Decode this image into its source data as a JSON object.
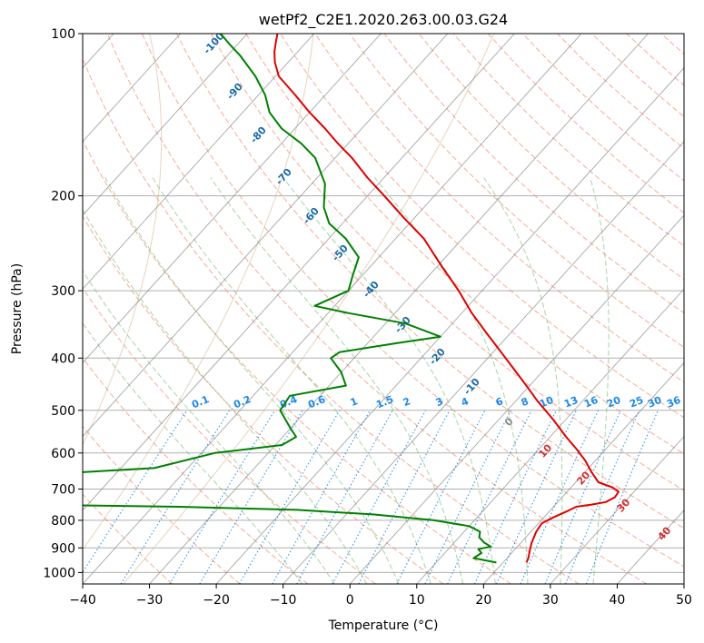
{
  "chart_data": {
    "type": "line",
    "title": "wetPf2_C2E1.2020.263.00.03.G24",
    "xlabel": "Temperature (°C)",
    "ylabel": "Pressure (hPa)",
    "xlim": [
      -40,
      50
    ],
    "ylim": [
      1050,
      100
    ],
    "y_scale": "log",
    "x_ticks": [
      -40,
      -30,
      -20,
      -10,
      0,
      10,
      20,
      30,
      40,
      50
    ],
    "x_tick_labels": [
      "−40",
      "−30",
      "−20",
      "−10",
      "0",
      "10",
      "20",
      "30",
      "40",
      "50"
    ],
    "y_ticks": [
      100,
      200,
      300,
      400,
      500,
      600,
      700,
      800,
      900,
      1000
    ],
    "y_tick_labels": [
      "100",
      "200",
      "300",
      "400",
      "500",
      "600",
      "700",
      "800",
      "900",
      "1000"
    ],
    "grid": true,
    "skew": true,
    "colors": {
      "temperature": "#e00000",
      "dewpoint": "#008000",
      "isotherm": "#888888",
      "dry_adiabat": "#f08060",
      "moist_adiabat": "#60b060",
      "mixing_ratio": "#1e88e5",
      "isotherm_label": "#1a6aa8",
      "warm_label": "#d03030",
      "zero_label": "#888888",
      "ref_curve": "#c8a070"
    },
    "series": [
      {
        "name": "",
        "role": "temperature",
        "pressure": [
          958,
          940,
          915,
          880,
          840,
          810,
          790,
          770,
          755,
          748,
          740,
          725,
          708,
          695,
          680,
          650,
          620,
          590,
          560,
          520,
          480,
          450,
          420,
          390,
          360,
          330,
          300,
          270,
          240,
          220,
          200,
          185,
          170,
          160,
          150,
          140,
          130,
          120,
          113,
          108,
          104,
          100
        ],
        "temp": [
          23.5,
          23.2,
          22.5,
          21.6,
          20.8,
          20.5,
          21.4,
          22.6,
          23.4,
          25.4,
          27.2,
          27.9,
          27.7,
          26.2,
          23.4,
          20.9,
          18.5,
          15.6,
          12.4,
          8.1,
          3.2,
          -0.5,
          -4.5,
          -8.8,
          -13.5,
          -18.5,
          -23.5,
          -29.4,
          -35.8,
          -41.5,
          -47.5,
          -52.5,
          -57.5,
          -61.5,
          -65.5,
          -70.0,
          -74.5,
          -79.5,
          -82.0,
          -83.5,
          -84.5,
          -85.5
        ]
      },
      {
        "name": "",
        "role": "dewpoint",
        "pressure": [
          958,
          940,
          920,
          905,
          895,
          880,
          860,
          840,
          820,
          800,
          780,
          765,
          755,
          750,
          748,
          740,
          700,
          670,
          640,
          600,
          580,
          560,
          540,
          500,
          470,
          450,
          425,
          400,
          390,
          375,
          365,
          345,
          330,
          320,
          300,
          280,
          260,
          240,
          225,
          210,
          190,
          170,
          160,
          150,
          140,
          130,
          120,
          110,
          105,
          100
        ],
        "temp": [
          19.0,
          15.0,
          15.5,
          14.5,
          16.0,
          14.5,
          13.0,
          12.4,
          10.0,
          4.0,
          -6.0,
          -18.0,
          -36.0,
          -52.0,
          -90.0,
          -95.0,
          -95.0,
          -72.0,
          -45.0,
          -38.0,
          -29.0,
          -28.0,
          -30.0,
          -34.0,
          -34.5,
          -27.5,
          -30.0,
          -33.5,
          -33.0,
          -25.5,
          -20.0,
          -27.0,
          -37.0,
          -43.0,
          -40.0,
          -41.5,
          -43.0,
          -47.5,
          -52.0,
          -55.0,
          -58.0,
          -63.0,
          -67.0,
          -72.0,
          -76.0,
          -79.0,
          -83.0,
          -88.0,
          -91.0,
          -94.0
        ]
      }
    ],
    "isotherm_labels": [
      "-100",
      "-90",
      "-80",
      "-70",
      "-60",
      "-50",
      "-40",
      "-30",
      "-20",
      "-10"
    ],
    "zero_label": "0",
    "warm_isotherm_labels": [
      "10",
      "20",
      "30",
      "40"
    ],
    "mixing_ratio_labels": [
      "0.1",
      "0.2",
      "0.4",
      "0.6",
      "1",
      "1.5",
      "2",
      "3",
      "4",
      "6",
      "8",
      "10",
      "13",
      "16",
      "20",
      "25",
      "30",
      "36"
    ]
  }
}
